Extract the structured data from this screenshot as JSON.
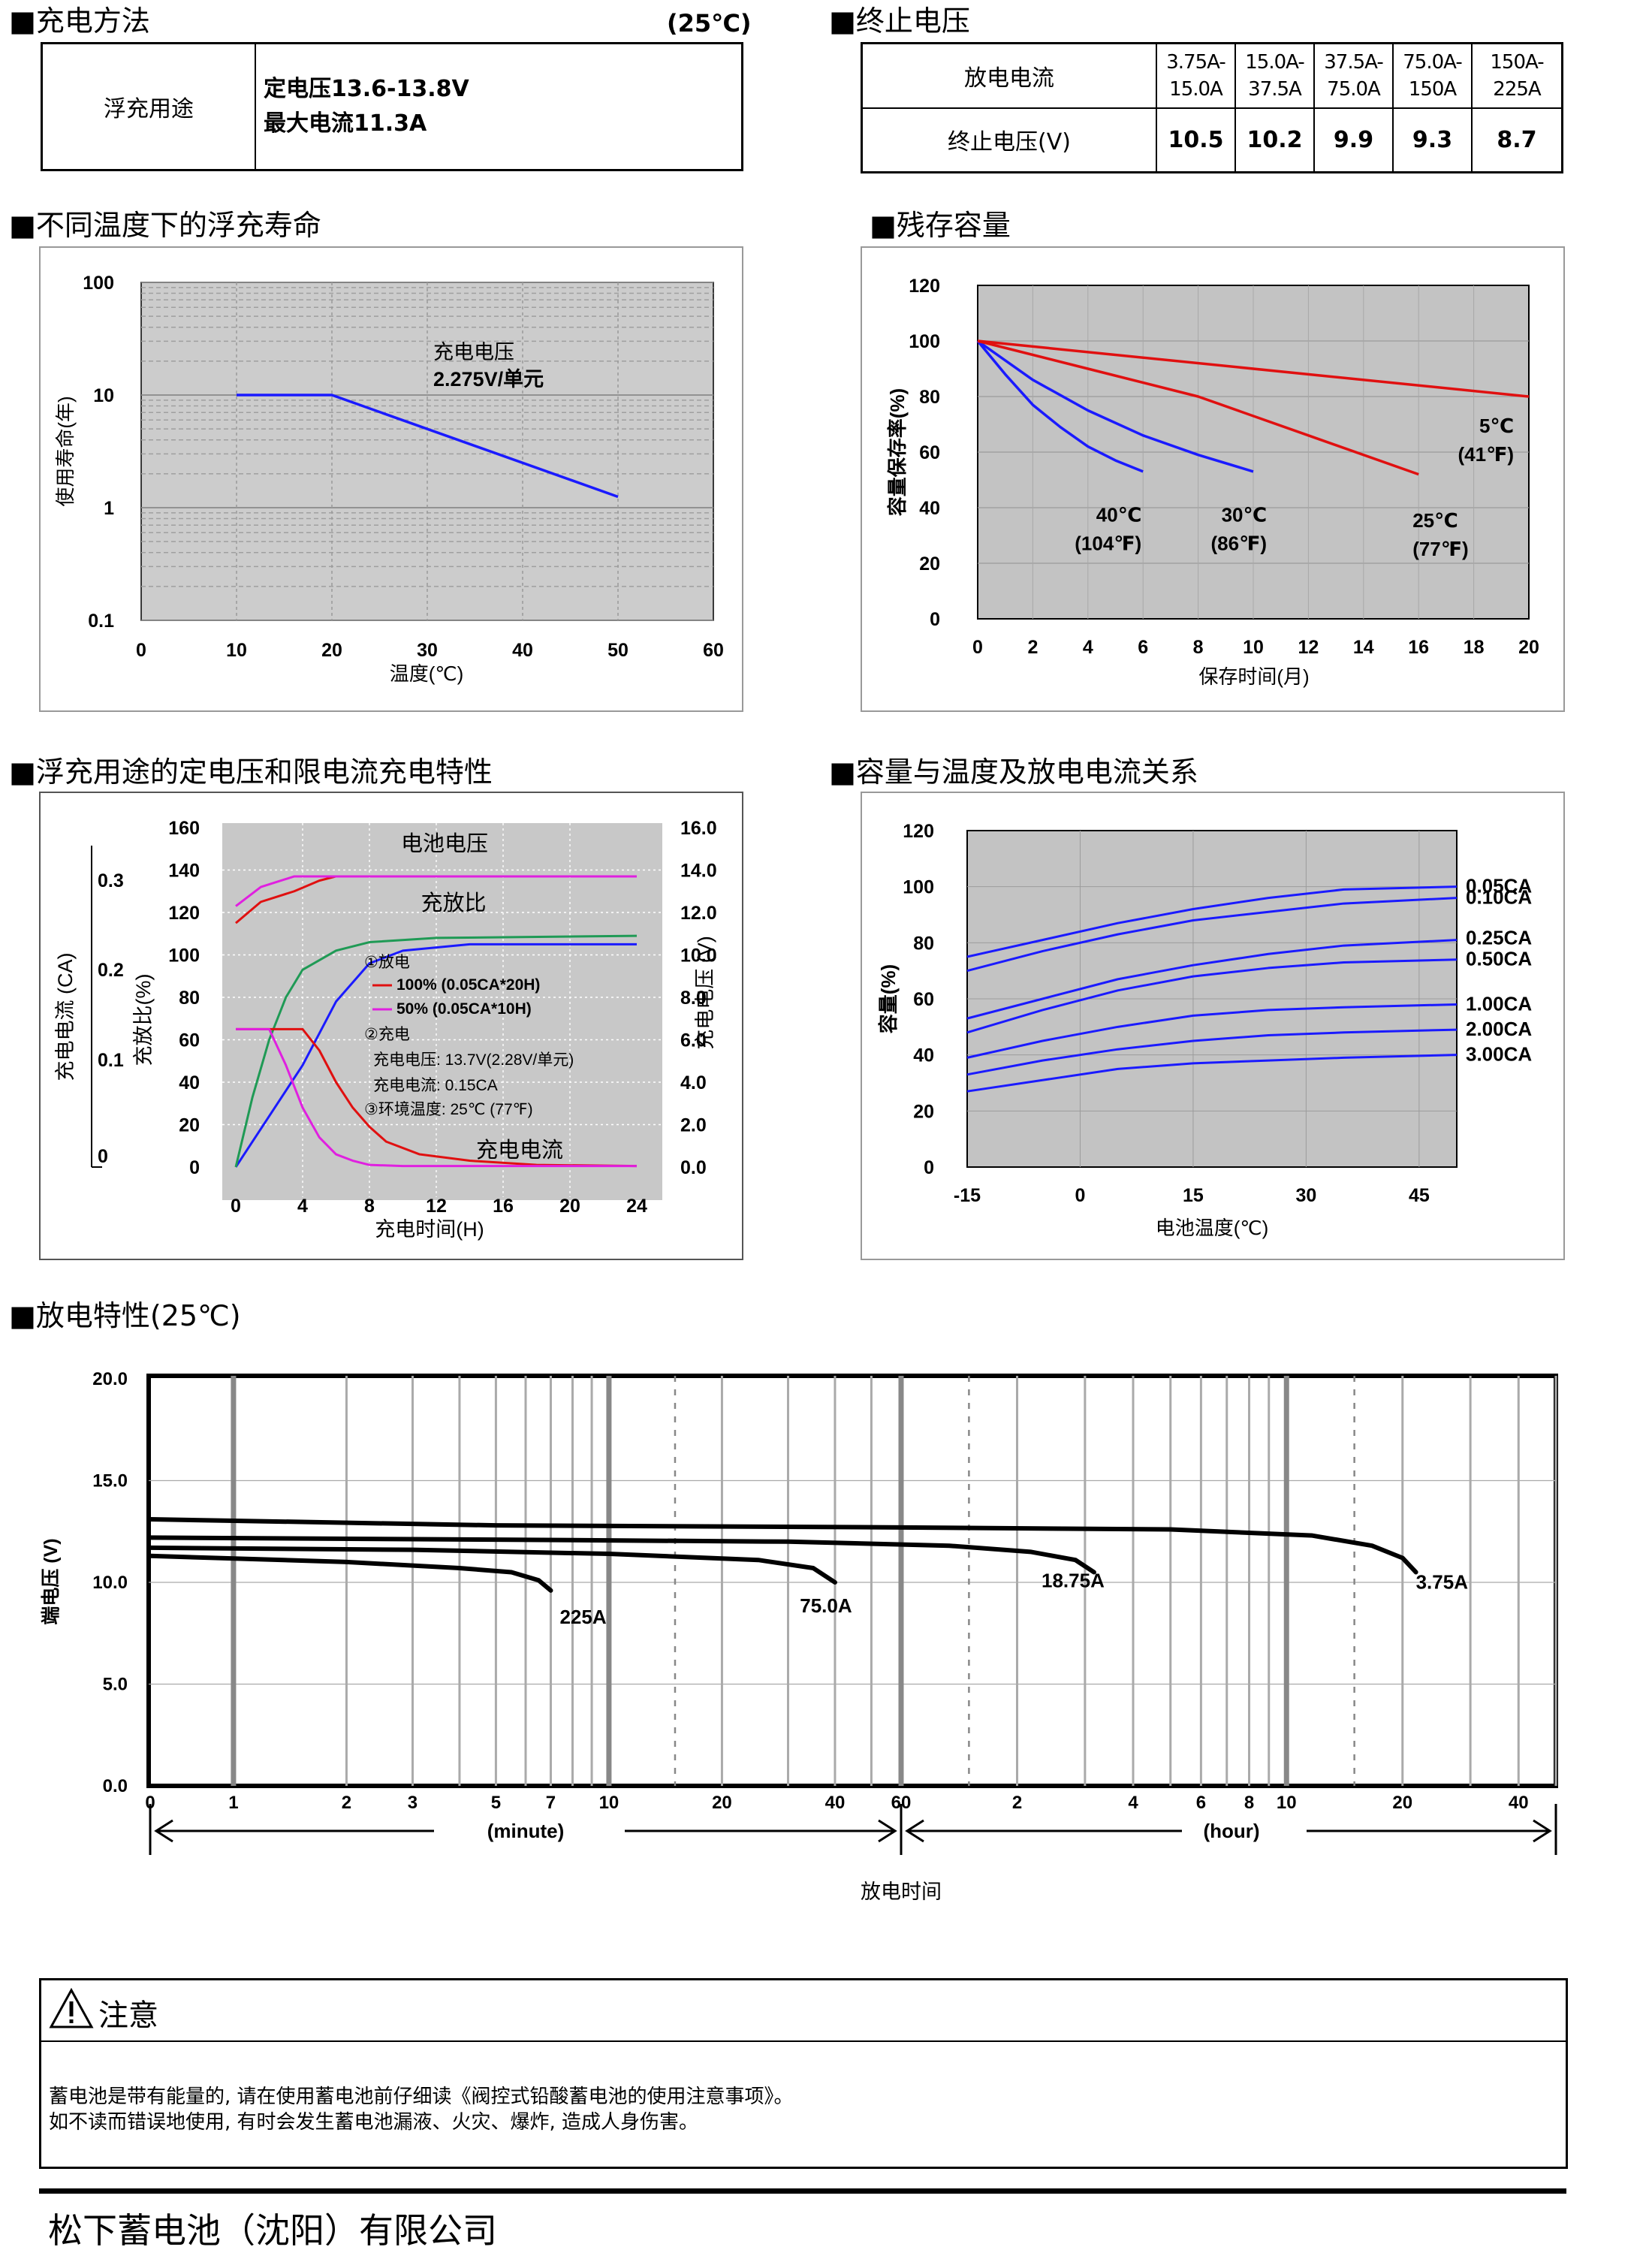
{
  "sections": {
    "charge_method": {
      "title": "■充电方法",
      "cond": "(25℃)"
    },
    "end_voltage": {
      "title": "■终止电压"
    },
    "float_life": {
      "title": "■不同温度下的浮充寿命"
    },
    "residual": {
      "title": "■残存容量"
    },
    "charge_char": {
      "title": "■浮充用途的定电压和限电流充电特性"
    },
    "capacity_temp": {
      "title": "■容量与温度及放电电流关系"
    },
    "discharge": {
      "title": "■放电特性(25℃)"
    }
  },
  "charge_table": {
    "use": "浮充用途",
    "line1": "定电压13.6-13.8V",
    "line2": "最大电流11.3A"
  },
  "end_table": {
    "row1_label": "放电电流",
    "row2_label": "终止电压(V)",
    "columns": [
      {
        "current_a": "3.75A-",
        "current_b": "15.0A",
        "voltage": "10.5"
      },
      {
        "current_a": "15.0A-",
        "current_b": "37.5A",
        "voltage": "10.2"
      },
      {
        "current_a": "37.5A-",
        "current_b": "75.0A",
        "voltage": "9.9"
      },
      {
        "current_a": "75.0A-",
        "current_b": "150A",
        "voltage": "9.3"
      },
      {
        "current_a": "150A-",
        "current_b": "225A",
        "voltage": "8.7"
      }
    ]
  },
  "chart_data": [
    {
      "id": "float_life",
      "type": "line",
      "title": "不同温度下的浮充寿命",
      "xlabel": "温度(℃)",
      "ylabel": "使用寿命(年)",
      "yscale": "log",
      "xlim": [
        0,
        60
      ],
      "ylim": [
        0.1,
        100
      ],
      "x_ticks": [
        "0",
        "10",
        "20",
        "30",
        "40",
        "50",
        "60"
      ],
      "y_ticks": [
        "100",
        "10",
        "1",
        "0.1"
      ],
      "series": [
        {
          "name": "充电电压 2.275V/单元",
          "x": [
            10,
            20,
            50
          ],
          "y": [
            10,
            10,
            1.25
          ],
          "color": "#1a1aff"
        }
      ],
      "annotation_line1": "充电电压",
      "annotation_line2": "2.275V/单元"
    },
    {
      "id": "residual",
      "type": "line",
      "title": "残存容量",
      "xlabel": "保存时间(月)",
      "ylabel": "容量保存率(%)",
      "xlim": [
        0,
        20
      ],
      "ylim": [
        0,
        120
      ],
      "x_ticks": [
        "0",
        "2",
        "4",
        "6",
        "8",
        "10",
        "12",
        "14",
        "16",
        "18",
        "20"
      ],
      "y_ticks": [
        "120",
        "100",
        "80",
        "60",
        "40",
        "20",
        "0"
      ],
      "series": [
        {
          "name": "40℃",
          "name2": "(104℉)",
          "x": [
            0,
            1,
            2,
            3,
            4,
            5,
            6
          ],
          "y": [
            100,
            88,
            77,
            69,
            62,
            57,
            53
          ],
          "color": "#1a1aff"
        },
        {
          "name": "30℃",
          "name2": "(86℉)",
          "x": [
            0,
            2,
            4,
            6,
            8,
            10
          ],
          "y": [
            100,
            86,
            75,
            66,
            59,
            53
          ],
          "color": "#1a1aff"
        },
        {
          "name": "25℃",
          "name2": "(77℉)",
          "x": [
            0,
            4,
            8,
            12,
            16
          ],
          "y": [
            100,
            90,
            80,
            66,
            52
          ],
          "color": "#e01010"
        },
        {
          "name": "5℃",
          "name2": "(41℉)",
          "x": [
            0,
            20
          ],
          "y": [
            100,
            80
          ],
          "color": "#e01010"
        }
      ]
    },
    {
      "id": "charge_char",
      "type": "line",
      "title": "浮充用途的定电压和限电流充电特性",
      "xlabel": "充电时间(H)",
      "ylabel_left_ca": "充电电流 (CA)",
      "ylabel_left_pct": "充放比(%)",
      "ylabel_right": "充电电压 (V)",
      "x_ticks": [
        "0",
        "4",
        "8",
        "12",
        "16",
        "20",
        "24"
      ],
      "y_ticks_pct": [
        "160",
        "140",
        "120",
        "100",
        "80",
        "60",
        "40",
        "20",
        "0"
      ],
      "y_ticks_v": [
        "16.0",
        "14.0",
        "12.0",
        "10.0",
        "8.0",
        "6.0",
        "4.0",
        "2.0",
        "0.0"
      ],
      "y_ticks_ca": [
        "0.3",
        "0.2",
        "0.1",
        "0"
      ],
      "labels": {
        "battery_voltage": "电池电压",
        "charge_ratio": "充放比",
        "charge_current": "充电电流"
      },
      "legend": {
        "l1": "①放电",
        "l2": "100% (0.05CA*20H)",
        "l3": "50% (0.05CA*10H)",
        "l4": "②充电",
        "l5": "充电电压:  13.7V(2.28V/单元)",
        "l6": "充电电流:  0.15CA",
        "l7": "③环境温度:  25℃ (77℉)"
      },
      "series": [
        {
          "name": "电池电压(100%)",
          "x": [
            0,
            1.5,
            3.5,
            5,
            6,
            24
          ],
          "y": [
            115,
            125,
            130,
            135,
            137,
            137
          ],
          "color": "#e01010"
        },
        {
          "name": "电池电压(50%)",
          "x": [
            0,
            1.5,
            3.5,
            6,
            24
          ],
          "y": [
            123,
            132,
            137,
            137,
            137
          ],
          "color": "#e020e0"
        },
        {
          "name": "充放比(100%)",
          "x": [
            0,
            2,
            4,
            6,
            8,
            10,
            14,
            24
          ],
          "y": [
            0,
            24,
            48,
            78,
            96,
            102,
            105,
            105
          ],
          "color": "#1a1aff"
        },
        {
          "name": "充放比(50%)",
          "x": [
            0,
            1,
            2,
            3,
            4,
            6,
            8,
            12,
            24
          ],
          "y": [
            0,
            33,
            60,
            80,
            93,
            102,
            106,
            108,
            109
          ],
          "color": "#1f9a55"
        },
        {
          "name": "充电电流(100%)",
          "x": [
            0,
            4,
            5,
            6,
            7,
            8,
            9,
            11,
            14,
            18,
            24
          ],
          "y": [
            65,
            65,
            55,
            40,
            28,
            19,
            12,
            6,
            3,
            1,
            0.5
          ],
          "color": "#e01010"
        },
        {
          "name": "充电电流(50%)",
          "x": [
            0,
            2,
            3,
            4,
            5,
            6,
            7,
            8,
            10,
            24
          ],
          "y": [
            65,
            65,
            48,
            28,
            14,
            6,
            3,
            1,
            0.5,
            0.5
          ],
          "color": "#e020e0"
        }
      ]
    },
    {
      "id": "capacity_temp",
      "type": "line",
      "title": "容量与温度及放电电流关系",
      "xlabel": "电池温度(℃)",
      "ylabel": "容量(%)",
      "xlim": [
        -15,
        50
      ],
      "ylim": [
        0,
        120
      ],
      "x_ticks": [
        "-15",
        "0",
        "15",
        "30",
        "45"
      ],
      "y_ticks": [
        "120",
        "100",
        "80",
        "60",
        "40",
        "20",
        "0"
      ],
      "series": [
        {
          "name": "0.05CA",
          "x": [
            -15,
            -5,
            5,
            15,
            25,
            35,
            50
          ],
          "y": [
            75,
            81,
            87,
            92,
            96,
            99,
            100
          ]
        },
        {
          "name": "0.10CA",
          "x": [
            -15,
            -5,
            5,
            15,
            25,
            35,
            50
          ],
          "y": [
            70,
            77,
            83,
            88,
            91,
            94,
            96
          ]
        },
        {
          "name": "0.25CA",
          "x": [
            -15,
            -5,
            5,
            15,
            25,
            35,
            50
          ],
          "y": [
            53,
            60,
            67,
            72,
            76,
            79,
            81
          ]
        },
        {
          "name": "0.50CA",
          "x": [
            -15,
            -5,
            5,
            15,
            25,
            35,
            50
          ],
          "y": [
            48,
            56,
            63,
            68,
            71,
            73,
            74
          ]
        },
        {
          "name": "1.00CA",
          "x": [
            -15,
            -5,
            5,
            15,
            25,
            35,
            50
          ],
          "y": [
            39,
            45,
            50,
            54,
            56,
            57,
            58
          ]
        },
        {
          "name": "2.00CA",
          "x": [
            -15,
            -5,
            5,
            15,
            25,
            35,
            50
          ],
          "y": [
            33,
            38,
            42,
            45,
            47,
            48,
            49
          ]
        },
        {
          "name": "3.00CA",
          "x": [
            -15,
            -5,
            5,
            15,
            25,
            35,
            50
          ],
          "y": [
            27,
            31,
            35,
            37,
            38,
            39,
            40
          ]
        }
      ]
    },
    {
      "id": "discharge",
      "type": "line",
      "title": "放电特性(25℃)",
      "xlabel": "放电时间",
      "ylabel": "端电压 (V)",
      "xscale": "log (minute | hour)",
      "ylim": [
        0,
        20
      ],
      "y_ticks": [
        "20.0",
        "15.0",
        "10.0",
        "5.0",
        "0.0"
      ],
      "x_ticks_minute": [
        "0",
        "1",
        "2",
        "3",
        "5",
        "7",
        "10",
        "20",
        "40",
        "60"
      ],
      "x_ticks_hour": [
        "2",
        "4",
        "6",
        "8",
        "10",
        "20",
        "40"
      ],
      "minute_label": "(minute)",
      "hour_label": "(hour)",
      "series": [
        {
          "name": "225A",
          "minutes": [
            0.6,
            2,
            4,
            5.5,
            6.5,
            7
          ],
          "y": [
            11.3,
            11.0,
            10.7,
            10.5,
            10.1,
            9.6
          ]
        },
        {
          "name": "75.0A",
          "minutes": [
            0.6,
            3,
            10,
            25,
            35,
            40
          ],
          "y": [
            11.7,
            11.6,
            11.4,
            11.1,
            10.7,
            10.0
          ]
        },
        {
          "name": "18.75A",
          "minutes": [
            0.6,
            5,
            30,
            80,
            130,
            170,
            190
          ],
          "y": [
            12.2,
            12.1,
            12.0,
            11.8,
            11.5,
            11.1,
            10.5
          ]
        },
        {
          "name": "3.75A",
          "minutes": [
            0.6,
            5,
            60,
            300,
            700,
            1000,
            1200,
            1300
          ],
          "y": [
            13.1,
            12.8,
            12.7,
            12.6,
            12.3,
            11.8,
            11.2,
            10.5
          ]
        }
      ]
    }
  ],
  "notice": {
    "title": "注意",
    "line1": "蓄电池是带有能量的, 请在使用蓄电池前仔细读《阀控式铅酸蓄电池的使用注意事项》。",
    "line2": "如不读而错误地使用, 有时会发生蓄电池漏液、火灾、爆炸, 造成人身伤害。"
  },
  "footer": {
    "company": "松下蓄电池（沈阳）有限公司"
  }
}
